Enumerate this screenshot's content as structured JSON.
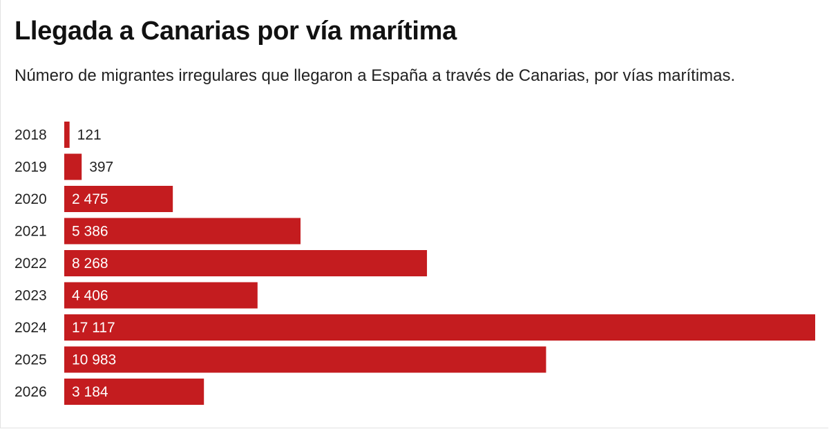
{
  "chart_data": {
    "type": "bar",
    "orientation": "horizontal",
    "title": "Llegada a Canarias por vía marítima",
    "subtitle": "Número de migrantes irregulares que llegaron a España a través de Canarias, por vías marítimas.",
    "categories": [
      "2018",
      "2019",
      "2020",
      "2021",
      "2022",
      "2023",
      "2024",
      "2025",
      "2026"
    ],
    "values": [
      121,
      397,
      2475,
      5386,
      8268,
      4406,
      17117,
      10983,
      3184
    ],
    "value_labels": [
      "121",
      "397",
      "2 475",
      "5 386",
      "8 268",
      "4 406",
      "17 117",
      "10 983",
      "3 184"
    ],
    "xlim": [
      0,
      17117
    ],
    "grid": false,
    "bar_color": "#c41c1f"
  }
}
